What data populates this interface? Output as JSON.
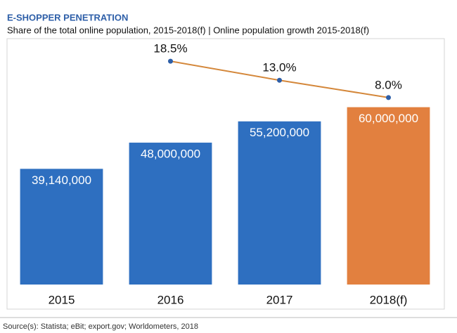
{
  "chart_data": {
    "type": "bar",
    "title": "E-SHOPPER PENETRATION",
    "subtitle": "Share of the total online population, 2015-2018(f) | Online population growth 2015-2018(f)",
    "source": "Source(s): Statista; eBit; export.gov; Worldometers, 2018",
    "categories": [
      "2015",
      "2016",
      "2017",
      "2018(f)"
    ],
    "ylim": [
      0,
      82000000
    ],
    "y2lim": [
      -46,
      24
    ],
    "series": [
      {
        "type": "bar",
        "colors": [
          "#2e6fc0",
          "#2e6fc0",
          "#2e6fc0",
          "#e2803f"
        ],
        "values": [
          39140000,
          48000000,
          55200000,
          60000000
        ],
        "value_labels": [
          "39,140,000",
          "48,000,000",
          "55,200,000",
          "60,000,000"
        ]
      },
      {
        "type": "line",
        "axis": "y2",
        "color": "#d4873a",
        "marker_color": "#2e5fa8",
        "values": [
          null,
          18.5,
          13.0,
          8.0
        ],
        "value_labels": [
          null,
          "18.5%",
          "13.0%",
          "8.0%"
        ]
      }
    ]
  }
}
